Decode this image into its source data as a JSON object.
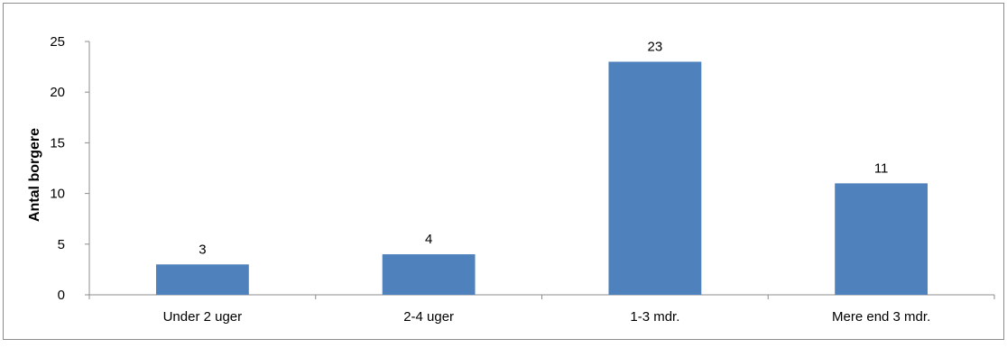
{
  "chart_data": {
    "type": "bar",
    "categories": [
      "Under 2 uger",
      "2-4 uger",
      "1-3 mdr.",
      "Mere end 3 mdr."
    ],
    "values": [
      3,
      4,
      23,
      11
    ],
    "data_labels": [
      "3",
      "4",
      "23",
      "11"
    ],
    "title": "",
    "xlabel": "",
    "ylabel": "Antal borgere",
    "ylim": [
      0,
      25
    ],
    "yticks": [
      0,
      5,
      10,
      15,
      20,
      25
    ],
    "grid": false,
    "legend": "none",
    "colors": {
      "bar": "#4f81bd",
      "axis": "#8c8c8c"
    }
  }
}
